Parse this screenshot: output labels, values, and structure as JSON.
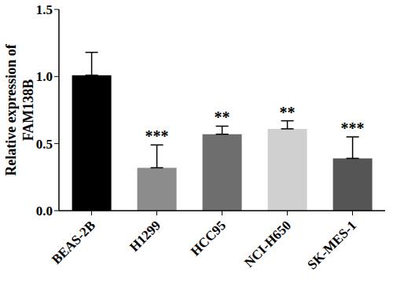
{
  "chart_data": {
    "type": "bar",
    "y_label": "Relative expression of FAM138B",
    "categories": [
      "BEAS-2B",
      "H1299",
      "HCC95",
      "NCI-H650",
      "SK-MES-1"
    ],
    "values": [
      1.01,
      0.32,
      0.57,
      0.61,
      0.39
    ],
    "errors": [
      0.17,
      0.17,
      0.06,
      0.06,
      0.16
    ],
    "significance": [
      null,
      "***",
      "**",
      "**",
      "***"
    ],
    "colors": [
      "#000000",
      "#8c8c8c",
      "#6e6e6e",
      "#d0d0d0",
      "#555555"
    ],
    "ylim": [
      0,
      1.5
    ],
    "yticks": [
      {
        "value": 0,
        "label": "0.0"
      },
      {
        "value": 0.5,
        "label": "0.5"
      },
      {
        "value": 1,
        "label": "1.0"
      },
      {
        "value": 1.5,
        "label": "1.5"
      }
    ],
    "grid": false
  }
}
